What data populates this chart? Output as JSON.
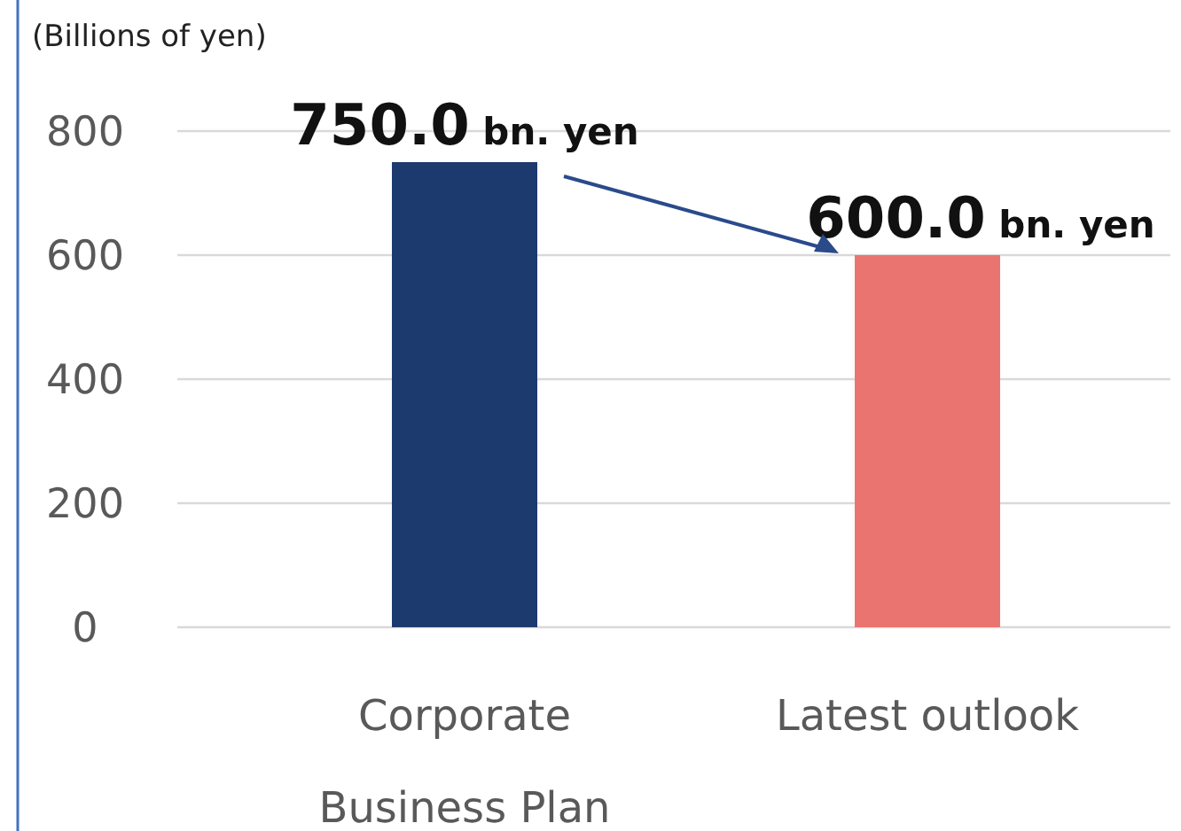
{
  "chart_data": {
    "type": "bar",
    "ylabel": "(Billions of yen)",
    "categories": [
      "Corporate Business Plan",
      "Latest outlook"
    ],
    "values": [
      750,
      600
    ],
    "colors": [
      "#1c3a6e",
      "#ea7570"
    ],
    "value_labels": [
      "750.0 bn. yen",
      "600.0 bn. yen"
    ],
    "ylim": [
      0,
      800
    ],
    "yticks": [
      0,
      200,
      400,
      600,
      800
    ],
    "grid": "y"
  }
}
